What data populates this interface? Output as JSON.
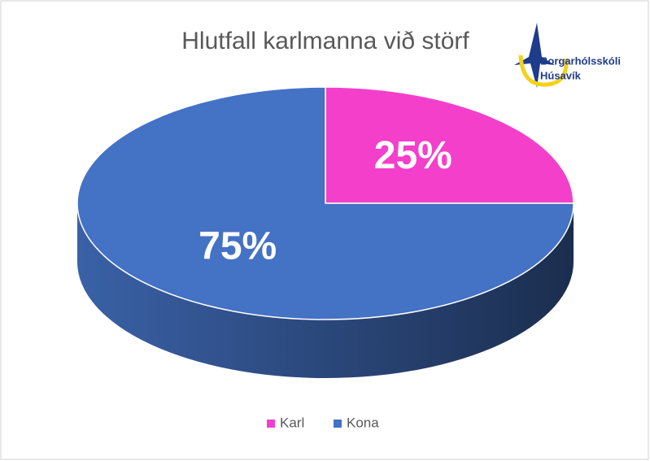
{
  "chart_data": {
    "type": "pie",
    "title": "Hlutfall karlmanna við störf",
    "categories": [
      "Karl",
      "Kona"
    ],
    "values": [
      25,
      75
    ],
    "value_labels": [
      "25%",
      "75%"
    ],
    "colors": [
      "#f43fcb",
      "#4472c4"
    ],
    "legend": "bottom",
    "logo": [
      "Borgarhólsskóli",
      "Húsavík"
    ]
  }
}
